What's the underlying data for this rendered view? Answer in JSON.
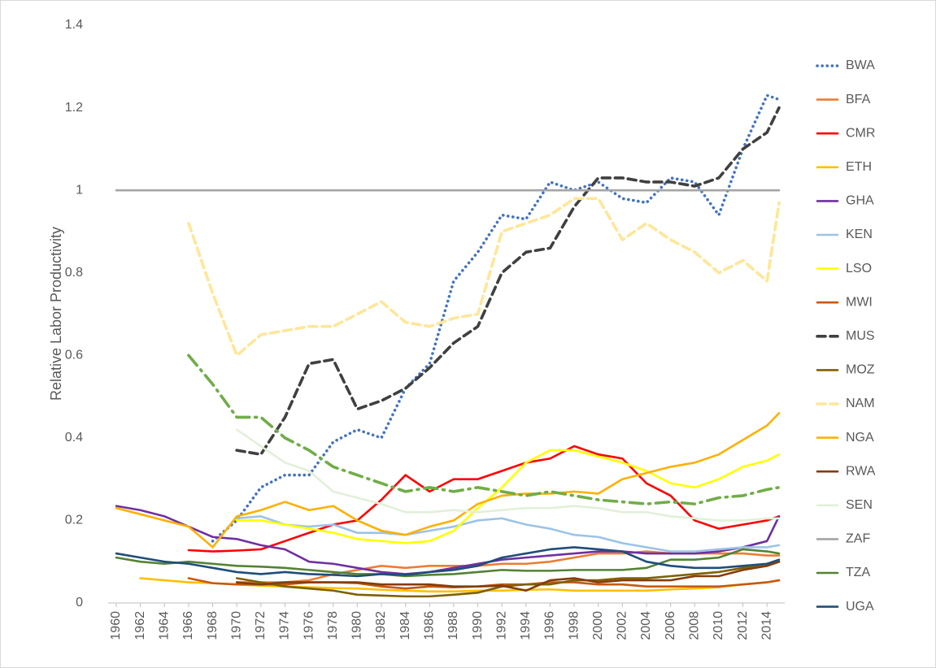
{
  "chart_data": {
    "type": "line",
    "y_label": "Relative Labor Productivity",
    "x": [
      1960,
      1962,
      1964,
      1966,
      1968,
      1970,
      1972,
      1974,
      1976,
      1978,
      1980,
      1982,
      1984,
      1986,
      1988,
      1990,
      1992,
      1994,
      1996,
      1998,
      2000,
      2002,
      2004,
      2006,
      2008,
      2010,
      2012,
      2014,
      2015
    ],
    "xlim": [
      1960,
      2015
    ],
    "xticks": [
      1960,
      1962,
      1964,
      1966,
      1968,
      1970,
      1972,
      1974,
      1976,
      1978,
      1980,
      1982,
      1984,
      1986,
      1988,
      1990,
      1992,
      1994,
      1996,
      1998,
      2000,
      2002,
      2004,
      2006,
      2008,
      2010,
      2012,
      2014
    ],
    "ylim": [
      0,
      1.4
    ],
    "yticks": [
      0,
      0.2,
      0.4,
      0.6,
      0.8,
      1,
      1.2,
      1.4
    ],
    "grid": false,
    "legend": "right",
    "series": [
      {
        "name": "BWA",
        "color": "#4472c4",
        "dash": "dotted",
        "values": [
          null,
          null,
          null,
          null,
          0.15,
          0.2,
          0.28,
          0.31,
          0.31,
          0.39,
          0.42,
          0.4,
          0.52,
          0.58,
          0.78,
          0.85,
          0.94,
          0.93,
          1.02,
          1.0,
          1.02,
          0.98,
          0.97,
          1.03,
          1.02,
          0.94,
          1.1,
          1.23,
          1.22
        ]
      },
      {
        "name": "BFA",
        "color": "#ed7d31",
        "dash": "solid",
        "values": [
          null,
          null,
          null,
          null,
          null,
          0.05,
          0.05,
          0.05,
          0.055,
          0.07,
          0.08,
          0.09,
          0.085,
          0.09,
          0.09,
          0.09,
          0.095,
          0.095,
          0.1,
          0.11,
          0.12,
          0.12,
          0.125,
          0.12,
          0.12,
          0.12,
          0.12,
          0.115,
          0.115
        ]
      },
      {
        "name": "CMR",
        "color": "#ff0000",
        "dash": "solid",
        "values": [
          null,
          null,
          null,
          0.128,
          0.125,
          0.127,
          0.13,
          0.15,
          0.17,
          0.19,
          0.2,
          0.25,
          0.31,
          0.27,
          0.3,
          0.3,
          0.32,
          0.34,
          0.35,
          0.38,
          0.36,
          0.35,
          0.29,
          0.26,
          0.2,
          0.18,
          0.19,
          0.2,
          0.21
        ]
      },
      {
        "name": "ETH",
        "color": "#ffc000",
        "dash": "solid",
        "values": [
          null,
          0.06,
          0.055,
          0.05,
          0.048,
          0.045,
          0.042,
          0.04,
          0.038,
          0.036,
          0.035,
          0.032,
          0.03,
          0.028,
          0.028,
          0.03,
          0.03,
          0.032,
          0.033,
          0.03,
          0.03,
          0.03,
          0.03,
          0.033,
          0.035,
          0.038,
          0.045,
          0.05,
          0.055
        ]
      },
      {
        "name": "GHA",
        "color": "#7030a0",
        "dash": "solid",
        "values": [
          0.235,
          0.225,
          0.21,
          0.185,
          0.16,
          0.155,
          0.14,
          0.13,
          0.1,
          0.095,
          0.085,
          0.075,
          0.07,
          0.075,
          0.085,
          0.095,
          0.105,
          0.11,
          0.115,
          0.12,
          0.125,
          0.125,
          0.12,
          0.12,
          0.12,
          0.125,
          0.135,
          0.15,
          0.21
        ]
      },
      {
        "name": "KEN",
        "color": "#9dc3e6",
        "dash": "solid",
        "values": [
          null,
          null,
          null,
          null,
          null,
          0.205,
          0.21,
          0.19,
          0.185,
          0.19,
          0.17,
          0.17,
          0.165,
          0.175,
          0.185,
          0.2,
          0.205,
          0.19,
          0.18,
          0.165,
          0.16,
          0.145,
          0.135,
          0.125,
          0.125,
          0.13,
          0.135,
          0.135,
          0.14
        ]
      },
      {
        "name": "LSO",
        "color": "#ffff00",
        "dash": "solid",
        "values": [
          null,
          null,
          null,
          null,
          null,
          0.2,
          0.2,
          0.19,
          0.18,
          0.17,
          0.155,
          0.15,
          0.145,
          0.15,
          0.175,
          0.23,
          0.28,
          0.34,
          0.37,
          0.37,
          0.355,
          0.34,
          0.32,
          0.29,
          0.28,
          0.3,
          0.33,
          0.345,
          0.36
        ]
      },
      {
        "name": "MWI",
        "color": "#c55a11",
        "dash": "solid",
        "values": [
          null,
          null,
          null,
          0.06,
          0.048,
          0.045,
          0.045,
          0.045,
          0.05,
          0.05,
          0.048,
          0.04,
          0.035,
          0.04,
          0.038,
          0.04,
          0.045,
          0.045,
          0.05,
          0.05,
          0.045,
          0.045,
          0.04,
          0.04,
          0.04,
          0.04,
          0.045,
          0.05,
          0.055
        ]
      },
      {
        "name": "MUS",
        "color": "#404040",
        "dash": "dashed",
        "values": [
          null,
          null,
          null,
          null,
          null,
          0.37,
          0.36,
          0.45,
          0.58,
          0.59,
          0.47,
          0.49,
          0.52,
          0.57,
          0.63,
          0.67,
          0.8,
          0.85,
          0.86,
          0.96,
          1.03,
          1.03,
          1.02,
          1.02,
          1.01,
          1.03,
          1.1,
          1.14,
          1.2
        ]
      },
      {
        "name": "MOZ",
        "color": "#7f6000",
        "dash": "solid",
        "values": [
          null,
          null,
          null,
          null,
          null,
          0.06,
          0.05,
          0.04,
          0.035,
          0.03,
          0.02,
          0.018,
          0.016,
          0.016,
          0.02,
          0.025,
          0.04,
          0.045,
          0.045,
          0.055,
          0.055,
          0.06,
          0.06,
          0.065,
          0.07,
          0.075,
          0.085,
          0.09,
          0.1
        ]
      },
      {
        "name": "NAM",
        "color": "#ffe699",
        "dash": "dashed",
        "values": [
          null,
          null,
          null,
          0.92,
          0.75,
          0.6,
          0.65,
          0.66,
          0.67,
          0.67,
          0.7,
          0.73,
          0.68,
          0.67,
          0.69,
          0.7,
          0.9,
          0.92,
          0.94,
          0.98,
          0.98,
          0.88,
          0.92,
          0.88,
          0.85,
          0.8,
          0.83,
          0.78,
          0.97
        ]
      },
      {
        "name": "NGA",
        "color": "#ffb000",
        "dash": "solid",
        "values": [
          0.23,
          0.215,
          0.2,
          0.185,
          0.135,
          0.21,
          0.225,
          0.245,
          0.225,
          0.235,
          0.2,
          0.175,
          0.165,
          0.185,
          0.2,
          0.24,
          0.26,
          0.265,
          0.265,
          0.27,
          0.265,
          0.3,
          0.315,
          0.33,
          0.34,
          0.36,
          0.395,
          0.43,
          0.46
        ]
      },
      {
        "name": "RWA",
        "color": "#843c0c",
        "dash": "solid",
        "values": [
          null,
          null,
          null,
          null,
          null,
          0.05,
          0.045,
          0.05,
          0.05,
          0.05,
          0.05,
          0.045,
          0.045,
          0.045,
          0.04,
          0.04,
          0.042,
          0.03,
          0.055,
          0.06,
          0.05,
          0.055,
          0.055,
          0.055,
          0.065,
          0.065,
          0.08,
          0.09,
          0.1
        ]
      },
      {
        "name": "SEN",
        "color": "#e2f0d9",
        "dash": "solid",
        "values": [
          null,
          null,
          null,
          null,
          null,
          0.42,
          0.38,
          0.34,
          0.32,
          0.27,
          0.255,
          0.24,
          0.22,
          0.22,
          0.225,
          0.22,
          0.225,
          0.23,
          0.23,
          0.235,
          0.23,
          0.22,
          0.22,
          0.21,
          0.205,
          0.2,
          0.2,
          0.205,
          0.205
        ]
      },
      {
        "name": "ZAF",
        "color": "#a5a5a5",
        "dash": "solid",
        "values": [
          1,
          1,
          1,
          1,
          1,
          1,
          1,
          1,
          1,
          1,
          1,
          1,
          1,
          1,
          1,
          1,
          1,
          1,
          1,
          1,
          1,
          1,
          1,
          1,
          1,
          1,
          1,
          1,
          1
        ]
      },
      {
        "name": "TZA",
        "color": "#548235",
        "dash": "solid",
        "values": [
          0.11,
          0.1,
          0.095,
          0.1,
          0.095,
          0.09,
          0.088,
          0.085,
          0.08,
          0.075,
          0.07,
          0.07,
          0.065,
          0.068,
          0.07,
          0.075,
          0.08,
          0.078,
          0.078,
          0.08,
          0.08,
          0.08,
          0.085,
          0.105,
          0.105,
          0.11,
          0.13,
          0.125,
          0.12
        ]
      },
      {
        "name": "UGA",
        "color": "#1f4e79",
        "dash": "solid",
        "values": [
          0.12,
          0.11,
          0.1,
          0.095,
          0.085,
          0.075,
          0.07,
          0.075,
          0.07,
          0.068,
          0.065,
          0.07,
          0.068,
          0.075,
          0.08,
          0.09,
          0.11,
          0.12,
          0.13,
          0.135,
          0.13,
          0.125,
          0.1,
          0.09,
          0.085,
          0.085,
          0.09,
          0.095,
          0.105
        ]
      },
      {
        "color": "#70ad47",
        "dash": "dashdot",
        "values": [
          null,
          null,
          null,
          0.6,
          0.53,
          0.45,
          0.45,
          0.4,
          0.37,
          0.33,
          0.31,
          0.29,
          0.27,
          0.28,
          0.27,
          0.28,
          0.27,
          0.26,
          0.27,
          0.26,
          0.25,
          0.245,
          0.24,
          0.245,
          0.24,
          0.255,
          0.26,
          0.275,
          0.28
        ]
      }
    ]
  }
}
